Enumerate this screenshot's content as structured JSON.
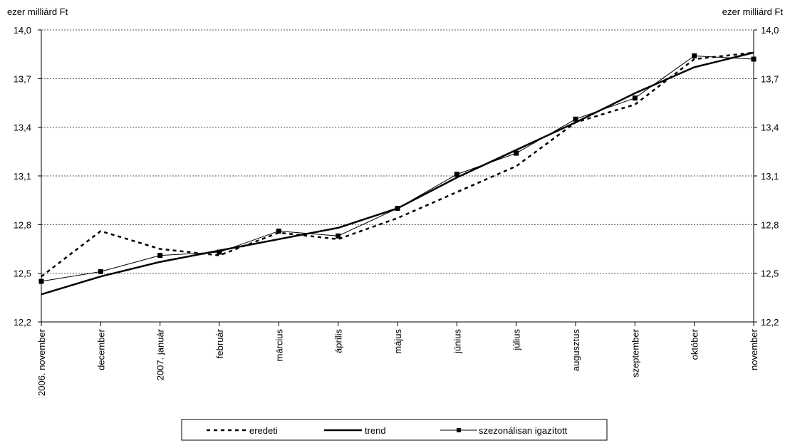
{
  "chart_data": {
    "type": "line",
    "ylabel_left": "ezer milliárd Ft",
    "ylabel_right": "ezer milliárd Ft",
    "categories": [
      "2006. november",
      "december",
      "2007. január",
      "február",
      "március",
      "április",
      "május",
      "június",
      "július",
      "augusztus",
      "szeptember",
      "október",
      "november"
    ],
    "ylim": [
      12.2,
      14.0
    ],
    "yticks": [
      "12,2",
      "12,5",
      "12,8",
      "13,1",
      "13,4",
      "13,7",
      "14,0"
    ],
    "ytick_values": [
      12.2,
      12.5,
      12.8,
      13.1,
      13.4,
      13.7,
      14.0
    ],
    "grid": true,
    "legend_position": "bottom",
    "series": [
      {
        "name": "eredeti",
        "style": "dashed",
        "values": [
          12.48,
          12.76,
          12.65,
          12.61,
          12.75,
          12.71,
          12.84,
          13.0,
          13.16,
          13.43,
          13.54,
          13.82,
          13.86
        ]
      },
      {
        "name": "trend",
        "style": "solid-thick",
        "values": [
          12.37,
          12.48,
          12.57,
          12.64,
          12.71,
          12.78,
          12.9,
          13.09,
          13.26,
          13.43,
          13.61,
          13.77,
          13.86
        ]
      },
      {
        "name": "szezonálisan igazított",
        "style": "solid-thin-square",
        "values": [
          12.45,
          12.51,
          12.61,
          12.63,
          12.76,
          12.73,
          12.9,
          13.11,
          13.24,
          13.45,
          13.58,
          13.84,
          13.82
        ]
      }
    ],
    "colors": {
      "line": "#000000",
      "grid": "#555555",
      "background": "#ffffff"
    }
  }
}
